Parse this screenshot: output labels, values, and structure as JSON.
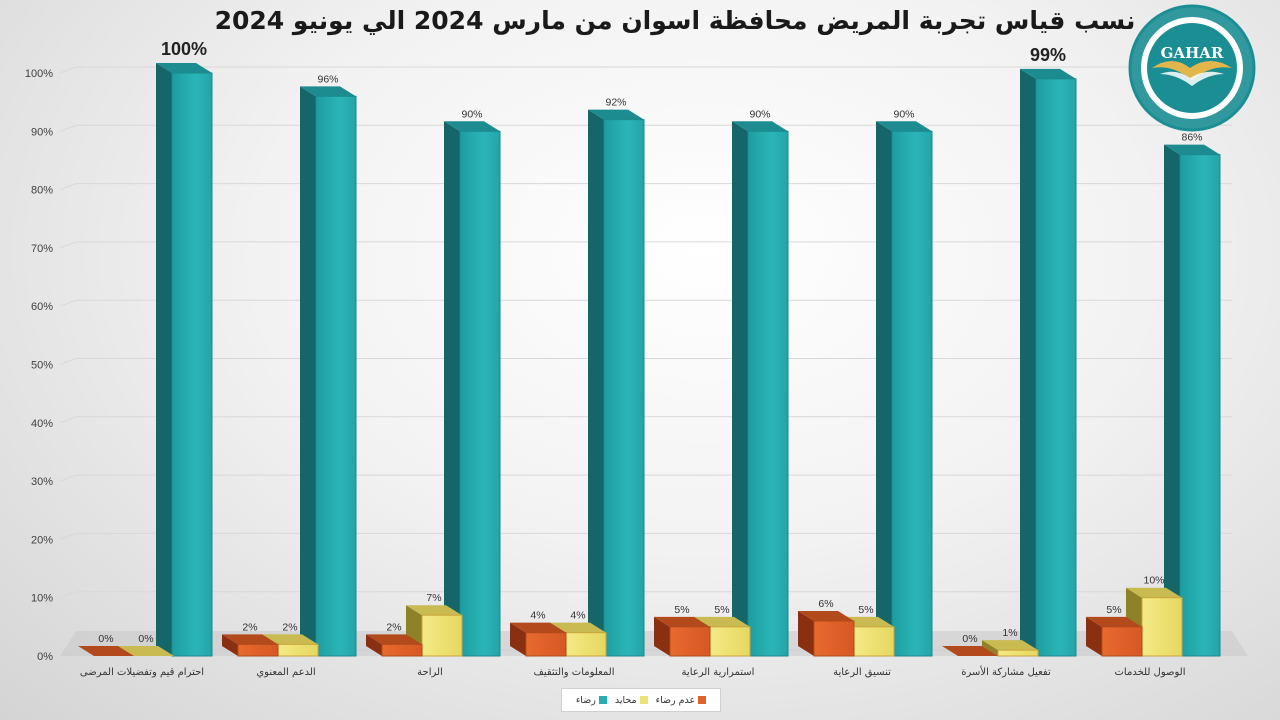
{
  "chart_data": {
    "type": "bar",
    "title": "نسب قياس تجربة المريض محافظة اسوان من مارس 2024 الي يونيو 2024",
    "xlabel": "",
    "ylabel": "",
    "ylim": [
      0,
      100
    ],
    "y_ticks": [
      "0%",
      "10%",
      "20%",
      "30%",
      "40%",
      "50%",
      "60%",
      "70%",
      "80%",
      "90%",
      "100%"
    ],
    "categories": [
      "احترام قيم وتفضيلات المرضى",
      "الدعم المعنوي",
      "الراحة",
      "المعلومات والتثقيف",
      "استمرارية الرعاية",
      "تنسيق الرعاية",
      "تفعيل مشاركة الأسرة",
      "الوصول للخدمات"
    ],
    "series": [
      {
        "name": "عدم رضاء",
        "color": "#E0622A",
        "values": [
          0,
          2,
          2,
          4,
          5,
          6,
          0,
          5
        ],
        "labels": [
          "0%",
          "2%",
          "2%",
          "4%",
          "5%",
          "6%",
          "0%",
          "5%"
        ]
      },
      {
        "name": "محايد",
        "color": "#EDE17A",
        "values": [
          0,
          2,
          7,
          4,
          5,
          5,
          1,
          10
        ],
        "labels": [
          "0%",
          "2%",
          "7%",
          "4%",
          "5%",
          "5%",
          "1%",
          "10%"
        ]
      },
      {
        "name": "رضاء",
        "color": "#2AADB0",
        "values": [
          100,
          96,
          90,
          92,
          90,
          90,
          99,
          86
        ],
        "labels": [
          "100%",
          "96%",
          "90%",
          "92%",
          "90%",
          "90%",
          "99%",
          "86%"
        ]
      }
    ],
    "grid": true,
    "legend_position": "bottom"
  },
  "logo": {
    "text": "GAHAR"
  }
}
